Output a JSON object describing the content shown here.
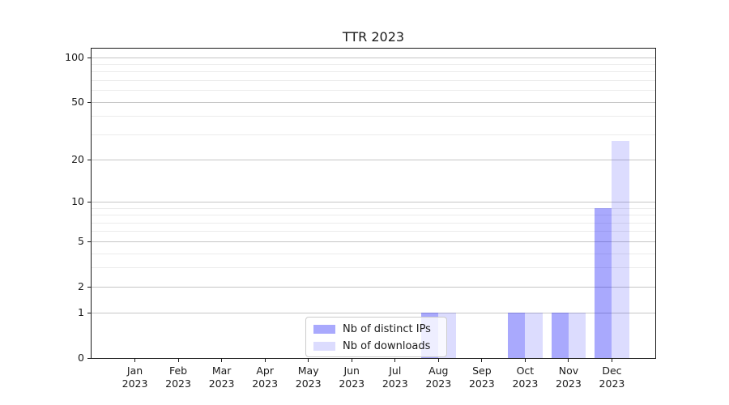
{
  "chart_data": {
    "type": "bar",
    "title": "TTR 2023",
    "categories": [
      "Jan",
      "Feb",
      "Mar",
      "Apr",
      "May",
      "Jun",
      "Jul",
      "Aug",
      "Sep",
      "Oct",
      "Nov",
      "Dec"
    ],
    "year_suffix": "2023",
    "series": [
      {
        "name": "Nb of distinct IPs",
        "color": "rgba(10,10,250,0.35)",
        "values": [
          0,
          0,
          0,
          0,
          0,
          0,
          0,
          1,
          0,
          1,
          1,
          9
        ]
      },
      {
        "name": "Nb of downloads",
        "color": "rgba(10,10,250,0.14)",
        "values": [
          0,
          0,
          0,
          0,
          0,
          0,
          0,
          1,
          0,
          1,
          1,
          27
        ]
      }
    ],
    "yscale": "log1p",
    "ylim": [
      0,
      114.3
    ],
    "yticks": [
      0,
      1,
      2,
      5,
      10,
      20,
      50,
      100
    ],
    "minor_yticks": [
      3,
      4,
      6,
      7,
      8,
      9,
      30,
      40,
      60,
      70,
      80,
      90
    ],
    "grid": true,
    "legend_position": "lower center",
    "colors": {
      "major_grid": "#c6c6c6",
      "minor_grid": "#ebebeb",
      "spine": "#1a1a1a",
      "bar_dark_hex": "#a7a7f8",
      "bar_light_hex": "#dcdcfb"
    }
  }
}
